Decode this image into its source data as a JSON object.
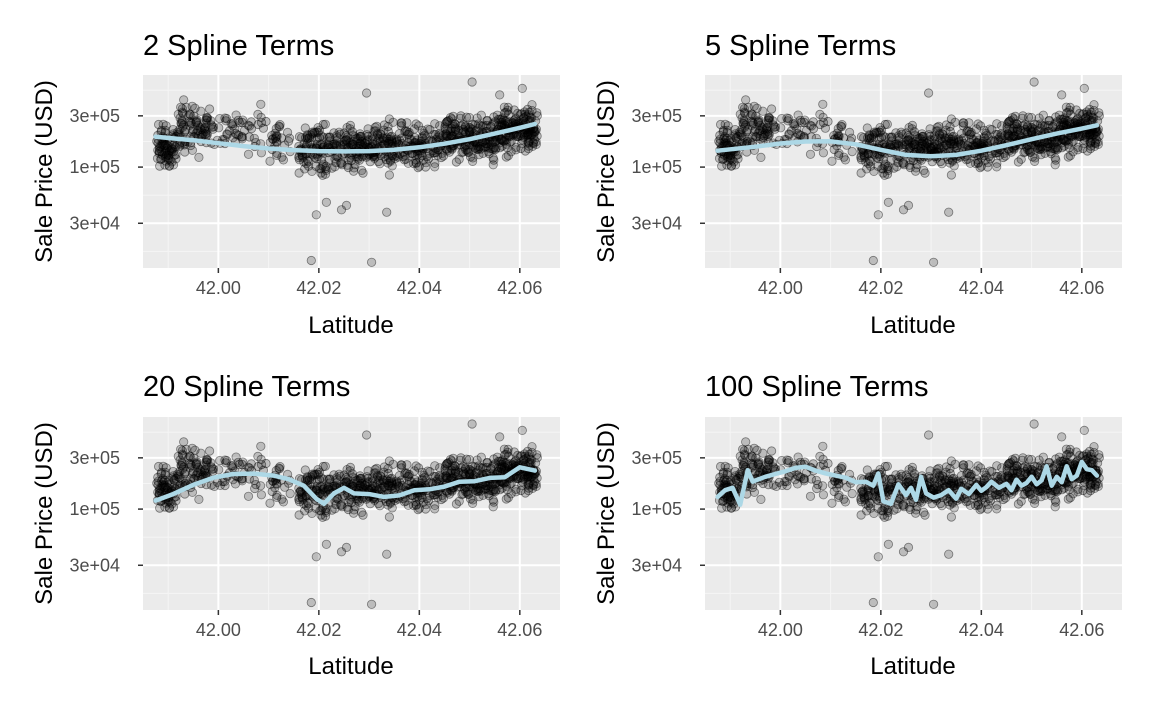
{
  "chart_data": [
    {
      "type": "scatter",
      "title": "2 Spline Terms",
      "xlabel": "Latitude",
      "ylabel": "Sale Price (USD)",
      "y_scale": "log10",
      "xlim": [
        41.985,
        42.068
      ],
      "ylim": [
        11500,
        720000
      ],
      "x_ticks": [
        42.0,
        42.02,
        42.04,
        42.06
      ],
      "x_tick_labels": [
        "42.00",
        "42.02",
        "42.04",
        "42.06"
      ],
      "y_ticks": [
        30000,
        100000,
        300000
      ],
      "y_tick_labels": [
        "3e+04",
        "1e+05",
        "3e+05"
      ],
      "fit_curve": {
        "x": [
          41.9875,
          41.995,
          42.0,
          42.005,
          42.01,
          42.015,
          42.02,
          42.025,
          42.03,
          42.035,
          42.04,
          42.045,
          42.05,
          42.055,
          42.06,
          42.063
        ],
        "y": [
          192000,
          178000,
          167000,
          157000,
          149000,
          144000,
          141000,
          140000,
          141000,
          145000,
          153000,
          165000,
          182000,
          205000,
          232000,
          252000
        ]
      }
    },
    {
      "type": "scatter",
      "title": "5 Spline Terms",
      "xlabel": "Latitude",
      "ylabel": "Sale Price (USD)",
      "y_scale": "log10",
      "xlim": [
        41.985,
        42.068
      ],
      "ylim": [
        11500,
        720000
      ],
      "x_ticks": [
        42.0,
        42.02,
        42.04,
        42.06
      ],
      "x_tick_labels": [
        "42.00",
        "42.02",
        "42.04",
        "42.06"
      ],
      "y_ticks": [
        30000,
        100000,
        300000
      ],
      "y_tick_labels": [
        "3e+04",
        "1e+05",
        "3e+05"
      ],
      "fit_curve": {
        "x": [
          41.9875,
          41.995,
          42.0,
          42.005,
          42.01,
          42.015,
          42.02,
          42.025,
          42.03,
          42.035,
          42.04,
          42.045,
          42.05,
          42.055,
          42.06,
          42.063
        ],
        "y": [
          142000,
          155000,
          166000,
          173000,
          174000,
          163000,
          145000,
          130000,
          126000,
          130000,
          142000,
          160000,
          182000,
          205000,
          228000,
          245000
        ]
      }
    },
    {
      "type": "scatter",
      "title": "20 Spline Terms",
      "xlabel": "Latitude",
      "ylabel": "Sale Price (USD)",
      "y_scale": "log10",
      "xlim": [
        41.985,
        42.068
      ],
      "ylim": [
        11500,
        720000
      ],
      "x_ticks": [
        42.0,
        42.02,
        42.04,
        42.06
      ],
      "x_tick_labels": [
        "42.00",
        "42.02",
        "42.04",
        "42.06"
      ],
      "y_ticks": [
        30000,
        100000,
        300000
      ],
      "y_tick_labels": [
        "3e+04",
        "1e+05",
        "3e+05"
      ],
      "fit_curve": {
        "x": [
          41.9875,
          41.991,
          41.995,
          41.999,
          42.003,
          42.007,
          42.011,
          42.014,
          42.017,
          42.0195,
          42.021,
          42.023,
          42.025,
          42.027,
          42.03,
          42.033,
          42.036,
          42.039,
          42.042,
          42.045,
          42.048,
          42.051,
          42.054,
          42.057,
          42.06,
          42.063
        ],
        "y": [
          120000,
          138000,
          168000,
          196000,
          212000,
          214000,
          205000,
          190000,
          165000,
          125000,
          112000,
          140000,
          158000,
          140000,
          138000,
          130000,
          134000,
          150000,
          153000,
          162000,
          180000,
          182000,
          195000,
          198000,
          245000,
          228000
        ]
      }
    },
    {
      "type": "scatter",
      "title": "100 Spline Terms",
      "xlabel": "Latitude",
      "ylabel": "Sale Price (USD)",
      "y_scale": "log10",
      "xlim": [
        41.985,
        42.068
      ],
      "ylim": [
        11500,
        720000
      ],
      "x_ticks": [
        42.0,
        42.02,
        42.04,
        42.06
      ],
      "x_tick_labels": [
        "42.00",
        "42.02",
        "42.04",
        "42.06"
      ],
      "y_ticks": [
        30000,
        100000,
        300000
      ],
      "y_tick_labels": [
        "3e+04",
        "1e+05",
        "3e+05"
      ],
      "fit_curve": {
        "x": [
          41.9875,
          41.989,
          41.9905,
          41.992,
          41.9935,
          41.9945,
          41.9955,
          41.997,
          41.999,
          42.001,
          42.003,
          42.005,
          42.007,
          42.009,
          42.011,
          42.013,
          42.015,
          42.017,
          42.0185,
          42.0195,
          42.0205,
          42.022,
          42.0235,
          42.025,
          42.026,
          42.027,
          42.028,
          42.029,
          42.0305,
          42.032,
          42.0335,
          42.035,
          42.036,
          42.0375,
          42.039,
          42.04,
          42.041,
          42.042,
          42.0435,
          42.045,
          42.046,
          42.047,
          42.048,
          42.049,
          42.05,
          42.051,
          42.052,
          42.053,
          42.054,
          42.055,
          42.056,
          42.057,
          42.058,
          42.059,
          42.06,
          42.061,
          42.062,
          42.063
        ],
        "y": [
          130000,
          150000,
          158000,
          110000,
          230000,
          180000,
          188000,
          200000,
          212000,
          225000,
          242000,
          248000,
          228000,
          215000,
          205000,
          196000,
          178000,
          180000,
          165000,
          215000,
          118000,
          112000,
          170000,
          135000,
          158000,
          122000,
          200000,
          140000,
          128000,
          135000,
          150000,
          125000,
          155000,
          138000,
          168000,
          148000,
          160000,
          180000,
          158000,
          172000,
          150000,
          188000,
          165000,
          175000,
          200000,
          170000,
          185000,
          250000,
          165000,
          200000,
          178000,
          250000,
          190000,
          205000,
          275000,
          235000,
          230000,
          205000
        ]
      }
    }
  ]
}
